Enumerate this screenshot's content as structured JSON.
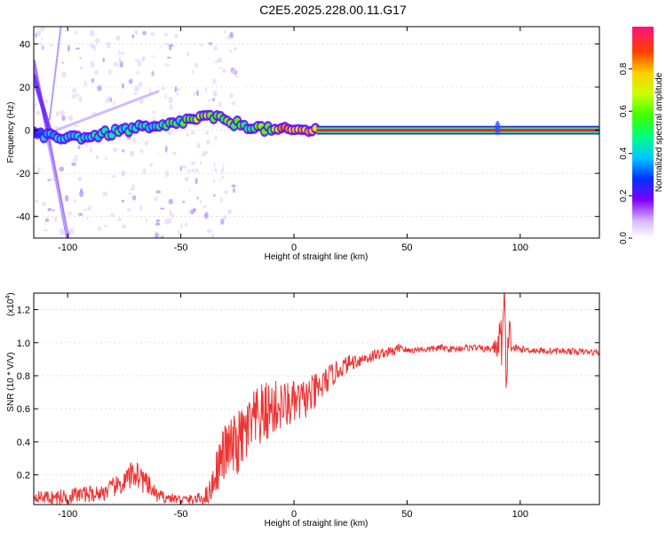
{
  "title": "C2E5.2025.228.00.11.G17",
  "colors": {
    "snr_line": "#ee3333",
    "spectrogram_ridge": "#ee2222",
    "background": "#ffffff"
  },
  "chart_data": [
    {
      "type": "heatmap",
      "title": "C2E5.2025.228.00.11.G17",
      "xlabel": "Height of straight line (km)",
      "ylabel": "Frequency (Hz)",
      "xlim": [
        -115,
        135
      ],
      "ylim": [
        -50,
        48
      ],
      "xticks": [
        -100,
        -50,
        0,
        50,
        100
      ],
      "xtick_labels": [
        "-100",
        "-50",
        "0",
        "50",
        "100"
      ],
      "yticks": [
        -40,
        -20,
        0,
        20,
        40
      ],
      "ytick_labels": [
        "-40",
        "-20",
        "0",
        "20",
        "40"
      ],
      "ridge": {
        "x": [
          -115,
          -110,
          -100,
          -90,
          -80,
          -70,
          -60,
          -50,
          -40,
          -35,
          -30,
          -20,
          -10,
          -5,
          0,
          5,
          10,
          50,
          90,
          100,
          135
        ],
        "y": [
          -2,
          -3,
          -3,
          -3,
          -1,
          1,
          1,
          4,
          6,
          6,
          4,
          2,
          0,
          0,
          0,
          0,
          0,
          0,
          0,
          0,
          0
        ],
        "amplitude": [
          0.3,
          0.35,
          0.45,
          0.45,
          0.5,
          0.5,
          0.5,
          0.55,
          0.65,
          0.65,
          0.6,
          0.55,
          0.65,
          0.8,
          0.85,
          0.8,
          0.7,
          1.0,
          1.0,
          1.0,
          1.0
        ]
      },
      "colorbar": {
        "label": "Normalized spectral amplitude",
        "range": [
          0,
          1
        ],
        "ticks": [
          0.0,
          0.2,
          0.4,
          0.6,
          0.8
        ],
        "tick_labels": [
          "0.0",
          "0.2",
          "0.4",
          "0.6",
          "0.8"
        ]
      }
    },
    {
      "type": "line",
      "xlabel": "Height of straight line (km)",
      "ylabel": "SNR (10 * V/V)",
      "y_multiplier": "(x10",
      "y_multiplier_exp": "4",
      "y_multiplier_close": ")",
      "xlim": [
        -115,
        135
      ],
      "ylim": [
        0.02,
        1.3
      ],
      "xticks": [
        -100,
        -50,
        0,
        50,
        100
      ],
      "xtick_labels": [
        "-100",
        "-50",
        "0",
        "50",
        "100"
      ],
      "yticks": [
        0.2,
        0.4,
        0.6,
        0.8,
        1.0,
        1.2
      ],
      "ytick_labels": [
        "0.2",
        "0.4",
        "0.6",
        "0.8",
        "1.0",
        "1.2"
      ],
      "series": [
        {
          "x": [
            -115,
            -105,
            -95,
            -85,
            -75,
            -70,
            -65,
            -60,
            -55,
            -50,
            -45,
            -40,
            -37,
            -35,
            -32,
            -30,
            -25,
            -20,
            -15,
            -10,
            -5,
            0,
            5,
            10,
            15,
            20,
            25,
            30,
            35,
            40,
            45,
            47,
            50,
            55,
            60,
            65,
            70,
            75,
            80,
            85,
            88,
            90,
            92,
            93,
            94,
            95,
            96,
            100,
            110,
            120,
            135
          ],
          "y": [
            0.07,
            0.06,
            0.08,
            0.09,
            0.15,
            0.22,
            0.14,
            0.07,
            0.06,
            0.05,
            0.05,
            0.06,
            0.1,
            0.2,
            0.3,
            0.35,
            0.38,
            0.48,
            0.55,
            0.6,
            0.62,
            0.63,
            0.66,
            0.7,
            0.78,
            0.84,
            0.88,
            0.9,
            0.92,
            0.94,
            0.95,
            0.98,
            0.95,
            0.96,
            0.96,
            0.97,
            0.96,
            0.97,
            0.97,
            0.96,
            0.97,
            0.98,
            1.05,
            1.22,
            0.62,
            1.15,
            0.97,
            0.96,
            0.95,
            0.95,
            0.94
          ],
          "noise": [
            0.03,
            0.05,
            0.05,
            0.05,
            0.07,
            0.1,
            0.07,
            0.04,
            0.03,
            0.03,
            0.03,
            0.04,
            0.08,
            0.12,
            0.16,
            0.18,
            0.2,
            0.2,
            0.2,
            0.18,
            0.15,
            0.14,
            0.12,
            0.12,
            0.08,
            0.06,
            0.05,
            0.04,
            0.04,
            0.03,
            0.03,
            0.03,
            0.02,
            0.02,
            0.02,
            0.02,
            0.02,
            0.02,
            0.02,
            0.02,
            0.03,
            0.08,
            0.2,
            0.2,
            0.2,
            0.15,
            0.03,
            0.02,
            0.02,
            0.02,
            0.02
          ]
        }
      ]
    }
  ]
}
